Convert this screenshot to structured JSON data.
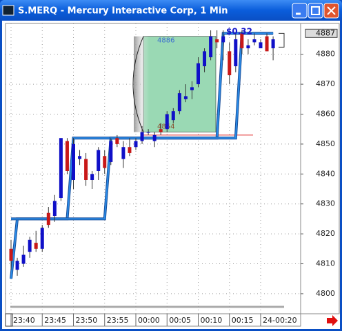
{
  "chart_data": {
    "type": "candlestick",
    "title": "S.MERQ - Mercury Interactive Corp, 1 Min",
    "categories": [
      "23:40",
      null,
      null,
      null,
      null,
      "23:45",
      null,
      null,
      null,
      null,
      "23:50",
      null,
      null,
      null,
      null,
      "23:55",
      null,
      null,
      null,
      null,
      "00:00",
      null,
      null,
      null,
      null,
      "00:05",
      null,
      null,
      null,
      null,
      "00:10",
      null,
      null,
      null,
      null,
      "00:15",
      null,
      null,
      null,
      null,
      "24-00:20",
      null,
      null
    ],
    "open": [
      4815,
      4808,
      4810,
      4814,
      4817,
      4815,
      4827,
      4826,
      4832,
      4851,
      4838,
      4845,
      4845,
      4838,
      4841,
      4846,
      4844,
      4852,
      4845,
      4849,
      4849,
      4851,
      4854,
      4851,
      4855,
      4855,
      4858,
      4861,
      4865,
      4868,
      4870,
      4876,
      4879,
      4885,
      4884,
      4881,
      4876,
      4887,
      4882,
      4884,
      4882,
      4886,
      4882
    ],
    "high": [
      4818,
      4812,
      4816,
      4819,
      4821,
      4823,
      4829,
      4833,
      4852,
      4852,
      4852,
      4848,
      4847,
      4841,
      4849,
      4848,
      4852,
      4853,
      4851,
      4852,
      4852,
      4856,
      4855,
      4854,
      4857,
      4861,
      4862,
      4868,
      4870,
      4871,
      4879,
      4882,
      4888,
      4888,
      4888,
      4884,
      4887,
      4888,
      4885,
      4887,
      4885,
      4887,
      4886
    ],
    "low": [
      4808,
      4806,
      4809,
      4812,
      4814,
      4814,
      4822,
      4824,
      4831,
      4840,
      4835,
      4843,
      4836,
      4835,
      4838,
      4840,
      4843,
      4849,
      4842,
      4846,
      4848,
      4850,
      4853,
      4849,
      4853,
      4854,
      4857,
      4860,
      4864,
      4865,
      4869,
      4874,
      4878,
      4882,
      4878,
      4870,
      4874,
      4880,
      4880,
      4883,
      4882,
      4881,
      4878
    ],
    "close": [
      4811,
      4811,
      4813,
      4818,
      4815,
      4822,
      4823,
      4831,
      4852,
      4841,
      4850,
      4846,
      4838,
      4840,
      4848,
      4842,
      4851,
      4850,
      4849,
      4847,
      4851,
      4854,
      4854,
      4853,
      4854,
      4860,
      4861,
      4867,
      4866,
      4869,
      4877,
      4881,
      4886,
      4884,
      4886,
      4873,
      4885,
      4882,
      4883,
      4885,
      4884,
      4881,
      4885
    ],
    "up_color": "#1010c8",
    "down_color": "#c81818",
    "ylim": [
      4793.3,
      4890.3
    ],
    "yticks": [
      4800,
      4810,
      4820,
      4830,
      4840,
      4850,
      4860,
      4870,
      4880
    ],
    "grid": true,
    "last_price": 4887,
    "overlays": [
      {
        "color": "#2a8ce8",
        "values": [
          4805,
          4825,
          4825,
          4825,
          4825,
          4825,
          4825,
          4825,
          4825,
          4825,
          4852,
          4852,
          4852,
          4852,
          4852,
          4852,
          4852,
          4852,
          4852,
          4852,
          4852,
          4852,
          4852,
          4852,
          4852,
          4852,
          4852,
          4852,
          4852,
          4852,
          4852,
          4852,
          4852,
          4852,
          4887,
          4887,
          4887,
          4887,
          4887,
          4887,
          4887,
          4887,
          4887
        ]
      },
      {
        "color": "#2a8ce8",
        "values": [
          4825,
          4825,
          4825,
          4825,
          4825,
          4825,
          4825,
          4825,
          4825,
          4825,
          4825,
          4825,
          4825,
          4825,
          4825,
          4825,
          4852,
          4852,
          4852,
          4852,
          4852,
          4852,
          4852,
          4852,
          4852,
          4852,
          4852,
          4852,
          4852,
          4852,
          4852,
          4852,
          4852,
          4852,
          4852,
          4852,
          4852,
          4887,
          4887,
          4887,
          4887,
          4887,
          4887
        ]
      }
    ],
    "range_box": {
      "top": 4886,
      "bottom": 4854,
      "color": "#9ad9b4"
    },
    "reference_line": {
      "value": 4853,
      "color": "#e03030"
    },
    "annotation": "$0.32"
  }
}
